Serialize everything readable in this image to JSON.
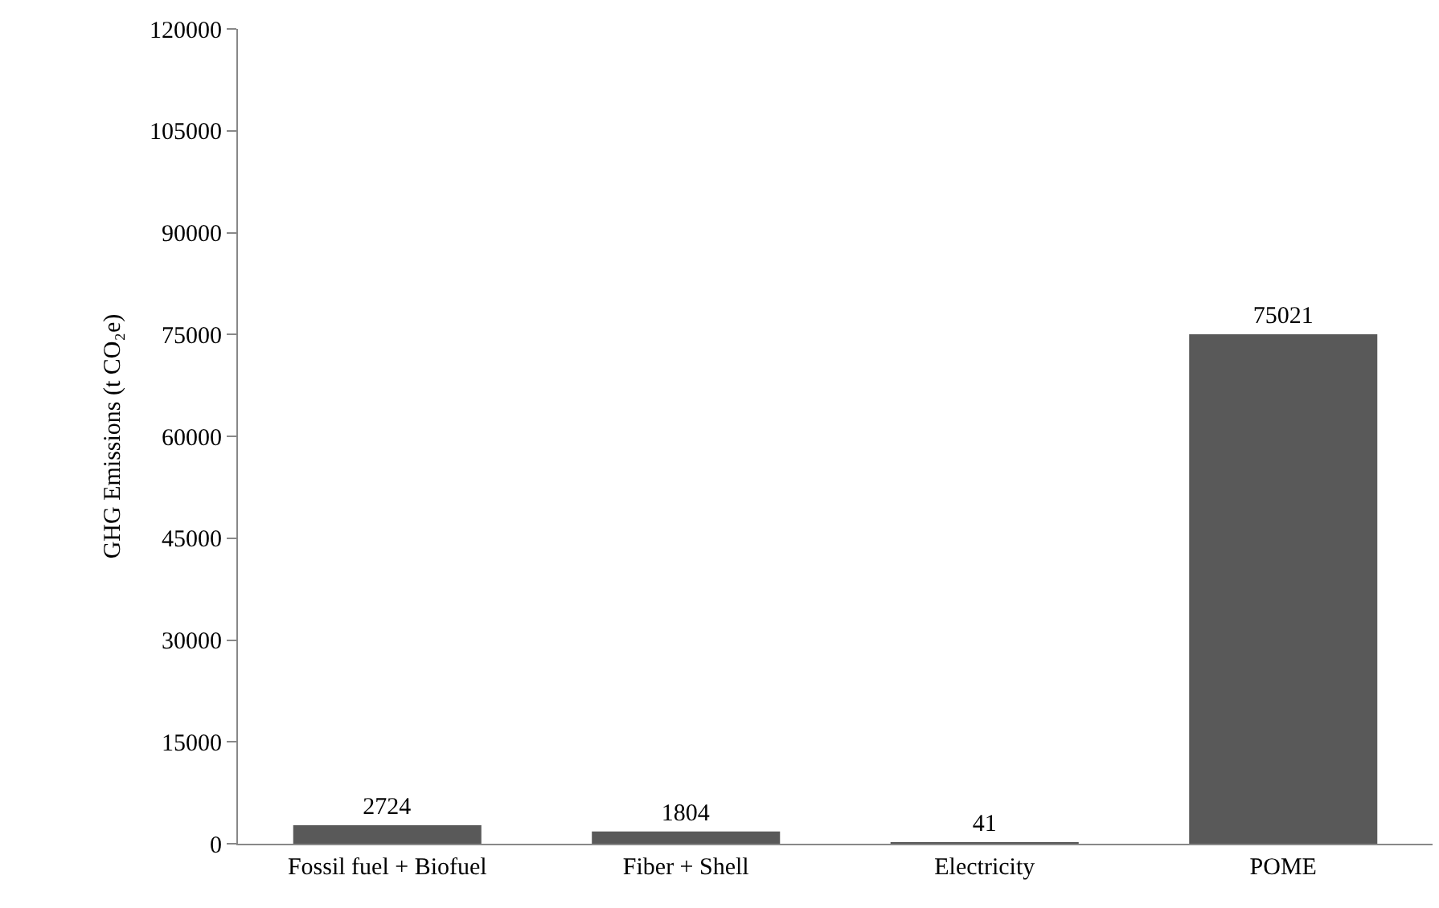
{
  "chart_data": {
    "type": "bar",
    "ylabel": "GHG Emissions (t CO₂e)",
    "categories": [
      "Fossil fuel + Biofuel",
      "Fiber + Shell",
      "Electricity",
      "POME"
    ],
    "values": [
      2724,
      1804,
      41,
      75021
    ],
    "color": "#595959",
    "ylim": [
      0,
      120000
    ],
    "yticks": [
      0,
      15000,
      30000,
      45000,
      60000,
      75000,
      90000,
      105000,
      120000
    ],
    "grid": false,
    "legend": false,
    "data_labels": true
  }
}
